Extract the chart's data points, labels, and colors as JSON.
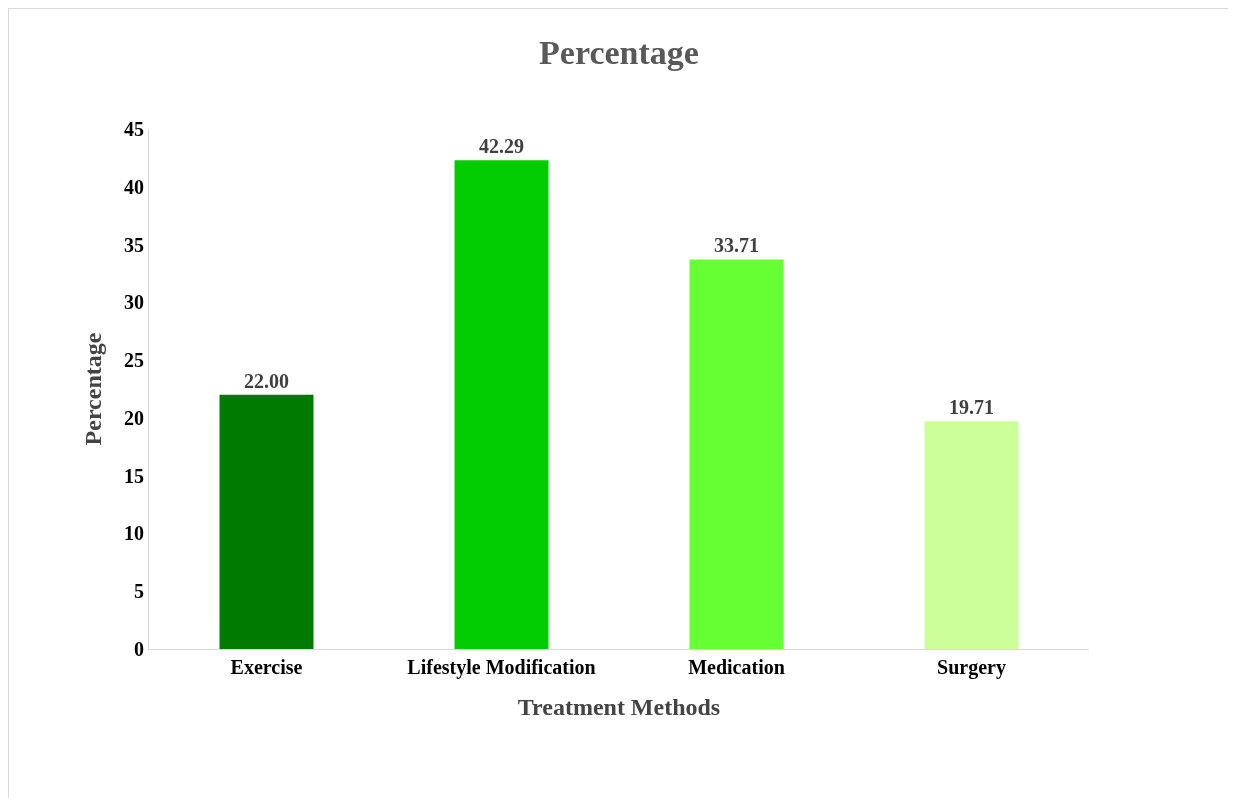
{
  "chart_data": {
    "type": "bar",
    "title": "Percentage",
    "xlabel": "Treatment Methods",
    "ylabel": "Percentage",
    "categories": [
      "Exercise",
      "Lifestyle Modification",
      "Medication",
      "Surgery"
    ],
    "values": [
      22.0,
      42.29,
      33.71,
      19.71
    ],
    "colors": [
      "#007a00",
      "#00cc00",
      "#66ff33",
      "#ccff99"
    ],
    "value_labels": [
      "22.00",
      "42.29",
      "33.71",
      "19.71"
    ],
    "ylim": [
      0,
      45
    ],
    "yticks": [
      0,
      5,
      10,
      15,
      20,
      25,
      30,
      35,
      40,
      45
    ],
    "grid": false
  }
}
